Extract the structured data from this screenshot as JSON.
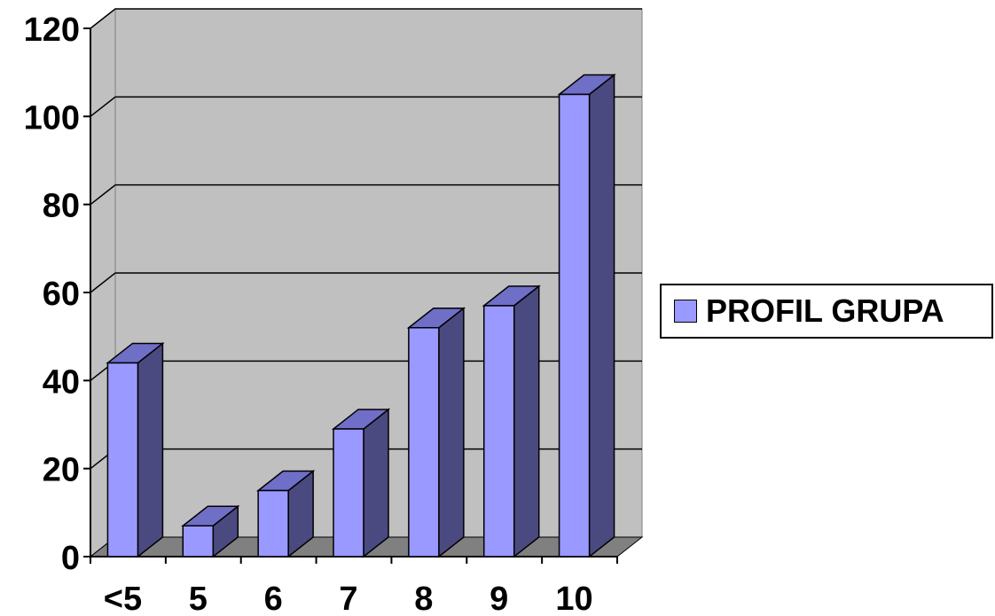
{
  "chart_data": {
    "type": "bar",
    "categories": [
      "<5",
      "5",
      "6",
      "7",
      "8",
      "9",
      "10"
    ],
    "series": [
      {
        "name": "PROFIL GRUPA",
        "values": [
          44,
          7,
          15,
          29,
          52,
          57,
          105
        ]
      }
    ],
    "ylim": [
      0,
      120
    ],
    "yticks": [
      "0",
      "20",
      "40",
      "60",
      "80",
      "100",
      "120"
    ],
    "grid": true,
    "legend_position": "right",
    "colors": {
      "bar_front": "#9999ff",
      "bar_side": "#4b4a80",
      "bar_top": "#6f6fc8",
      "wall": "#c0c0c0",
      "floor": "#808080"
    }
  }
}
